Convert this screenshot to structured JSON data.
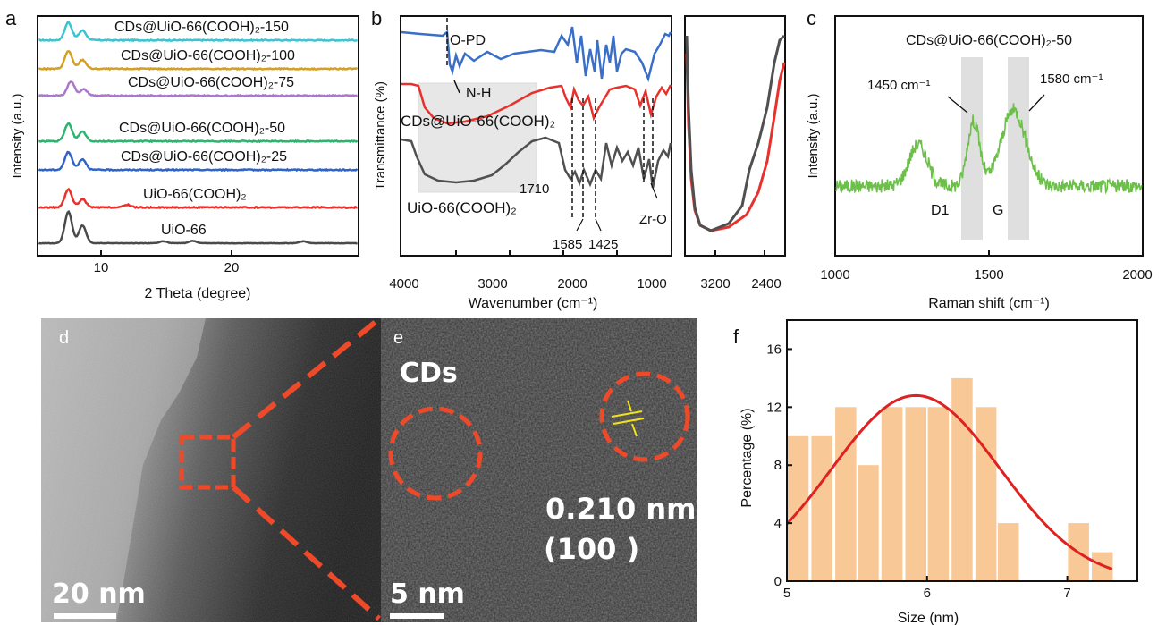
{
  "panel_letters": {
    "a": "a",
    "b": "b",
    "c": "c",
    "d": "d",
    "e": "e",
    "f": "f"
  },
  "chart_data": [
    {
      "panel": "a",
      "type": "line",
      "xlabel": "2 Theta (degree)",
      "ylabel": "Intensity (a.u.)",
      "xticks": [
        "10",
        "20"
      ],
      "xlim": [
        5,
        30
      ],
      "series": [
        {
          "name": "CDs@UiO-66(COOH)₂-150",
          "color": "#3ec4cf",
          "peaks": [
            [
              7.4,
              1.0
            ],
            [
              8.5,
              0.55
            ]
          ],
          "noise": 0.03
        },
        {
          "name": "CDs@UiO-66(COOH)₂-100",
          "color": "#d4a023",
          "peaks": [
            [
              7.4,
              1.0
            ],
            [
              8.5,
              0.5
            ]
          ],
          "noise": 0.03
        },
        {
          "name": "CDs@UiO-66(COOH)₂-75",
          "color": "#a977cc",
          "peaks": [
            [
              7.6,
              0.8
            ],
            [
              8.6,
              0.35
            ]
          ],
          "noise": 0.03
        },
        {
          "name": "CDs@UiO-66(COOH)₂-50",
          "color": "#2fb470",
          "peaks": [
            [
              7.4,
              1.0
            ],
            [
              8.5,
              0.55
            ]
          ],
          "noise": 0.03
        },
        {
          "name": "CDs@UiO-66(COOH)₂-25",
          "color": "#3063c7",
          "peaks": [
            [
              7.4,
              1.0
            ],
            [
              8.5,
              0.6
            ]
          ],
          "noise": 0.03
        },
        {
          "name": "UiO-66(COOH)₂",
          "color": "#e8312c",
          "peaks": [
            [
              7.4,
              1.0
            ],
            [
              8.5,
              0.45
            ],
            [
              12.0,
              0.15
            ]
          ],
          "noise": 0.03
        },
        {
          "name": "UiO-66",
          "color": "#4a4a4a",
          "peaks": [
            [
              7.4,
              1.6
            ],
            [
              8.5,
              0.9
            ],
            [
              14.8,
              0.1
            ],
            [
              17.1,
              0.12
            ],
            [
              25.7,
              0.1
            ]
          ],
          "noise": 0.01
        }
      ]
    },
    {
      "panel": "b",
      "type": "line",
      "xlabel": "Wavenumber (cm⁻¹)",
      "ylabel": "Transmittance (%)",
      "xticks": [
        "4000",
        "3000",
        "2000",
        "1000"
      ],
      "inset_xticks": [
        "3200",
        "2400"
      ],
      "series": [
        {
          "name": "O-PD",
          "color": "#3a6fc9"
        },
        {
          "name": "CDs@UiO-66(COOH)₂",
          "color": "#e8312c"
        },
        {
          "name": "UiO-66(COOH)₂",
          "color": "#505050"
        }
      ],
      "annotations": [
        "N-H",
        "1710",
        "1585",
        "1425",
        "Zr-O"
      ]
    },
    {
      "panel": "c",
      "type": "line",
      "title": "CDs@UiO-66(COOH)₂-50",
      "xlabel": "Raman shift (cm⁻¹)",
      "ylabel": "Intensity (a.u.)",
      "xticks": [
        "1000",
        "1500",
        "2000"
      ],
      "xlim": [
        1000,
        2000
      ],
      "series": [
        {
          "name": "CDs@UiO-66(COOH)₂-50",
          "color": "#6cc04a"
        }
      ],
      "bands": [
        {
          "label": "D1",
          "center": 1450
        },
        {
          "label": "G",
          "center": 1580
        }
      ],
      "annotations": [
        "1450 cm⁻¹",
        "1580 cm⁻¹",
        "D1",
        "G"
      ]
    },
    {
      "panel": "f",
      "type": "bar",
      "xlabel": "Size (nm)",
      "ylabel": "Percentage (%)",
      "xlim": [
        5,
        7.5
      ],
      "ylim": [
        0,
        18
      ],
      "xticks": [
        "5",
        "6",
        "7"
      ],
      "yticks": [
        "0",
        "4",
        "8",
        "12",
        "16"
      ],
      "bin_centers": [
        5.08,
        5.25,
        5.42,
        5.58,
        5.75,
        5.92,
        6.08,
        6.25,
        6.42,
        6.58,
        6.75,
        6.92,
        7.08,
        7.25
      ],
      "values": [
        10,
        10,
        12,
        8,
        12,
        12,
        12,
        14,
        12,
        4,
        0,
        0,
        4,
        2
      ],
      "bar_color": "#f8c896",
      "fit": {
        "type": "gaussian",
        "mean": 5.92,
        "sigma": 0.6,
        "peak": 12.8,
        "color": "#e02121"
      }
    }
  ],
  "micrographs": {
    "d": {
      "scale_bar": "20 nm"
    },
    "e": {
      "scale_bar": "5 nm",
      "label_cds": "CDs",
      "lattice": "0.210 nm",
      "plane": "(100 )"
    }
  },
  "colors": {
    "zoom_lines": "#ee4a2a",
    "circle": "#ee4a2a",
    "lattice_marker": "#f2e21a"
  }
}
